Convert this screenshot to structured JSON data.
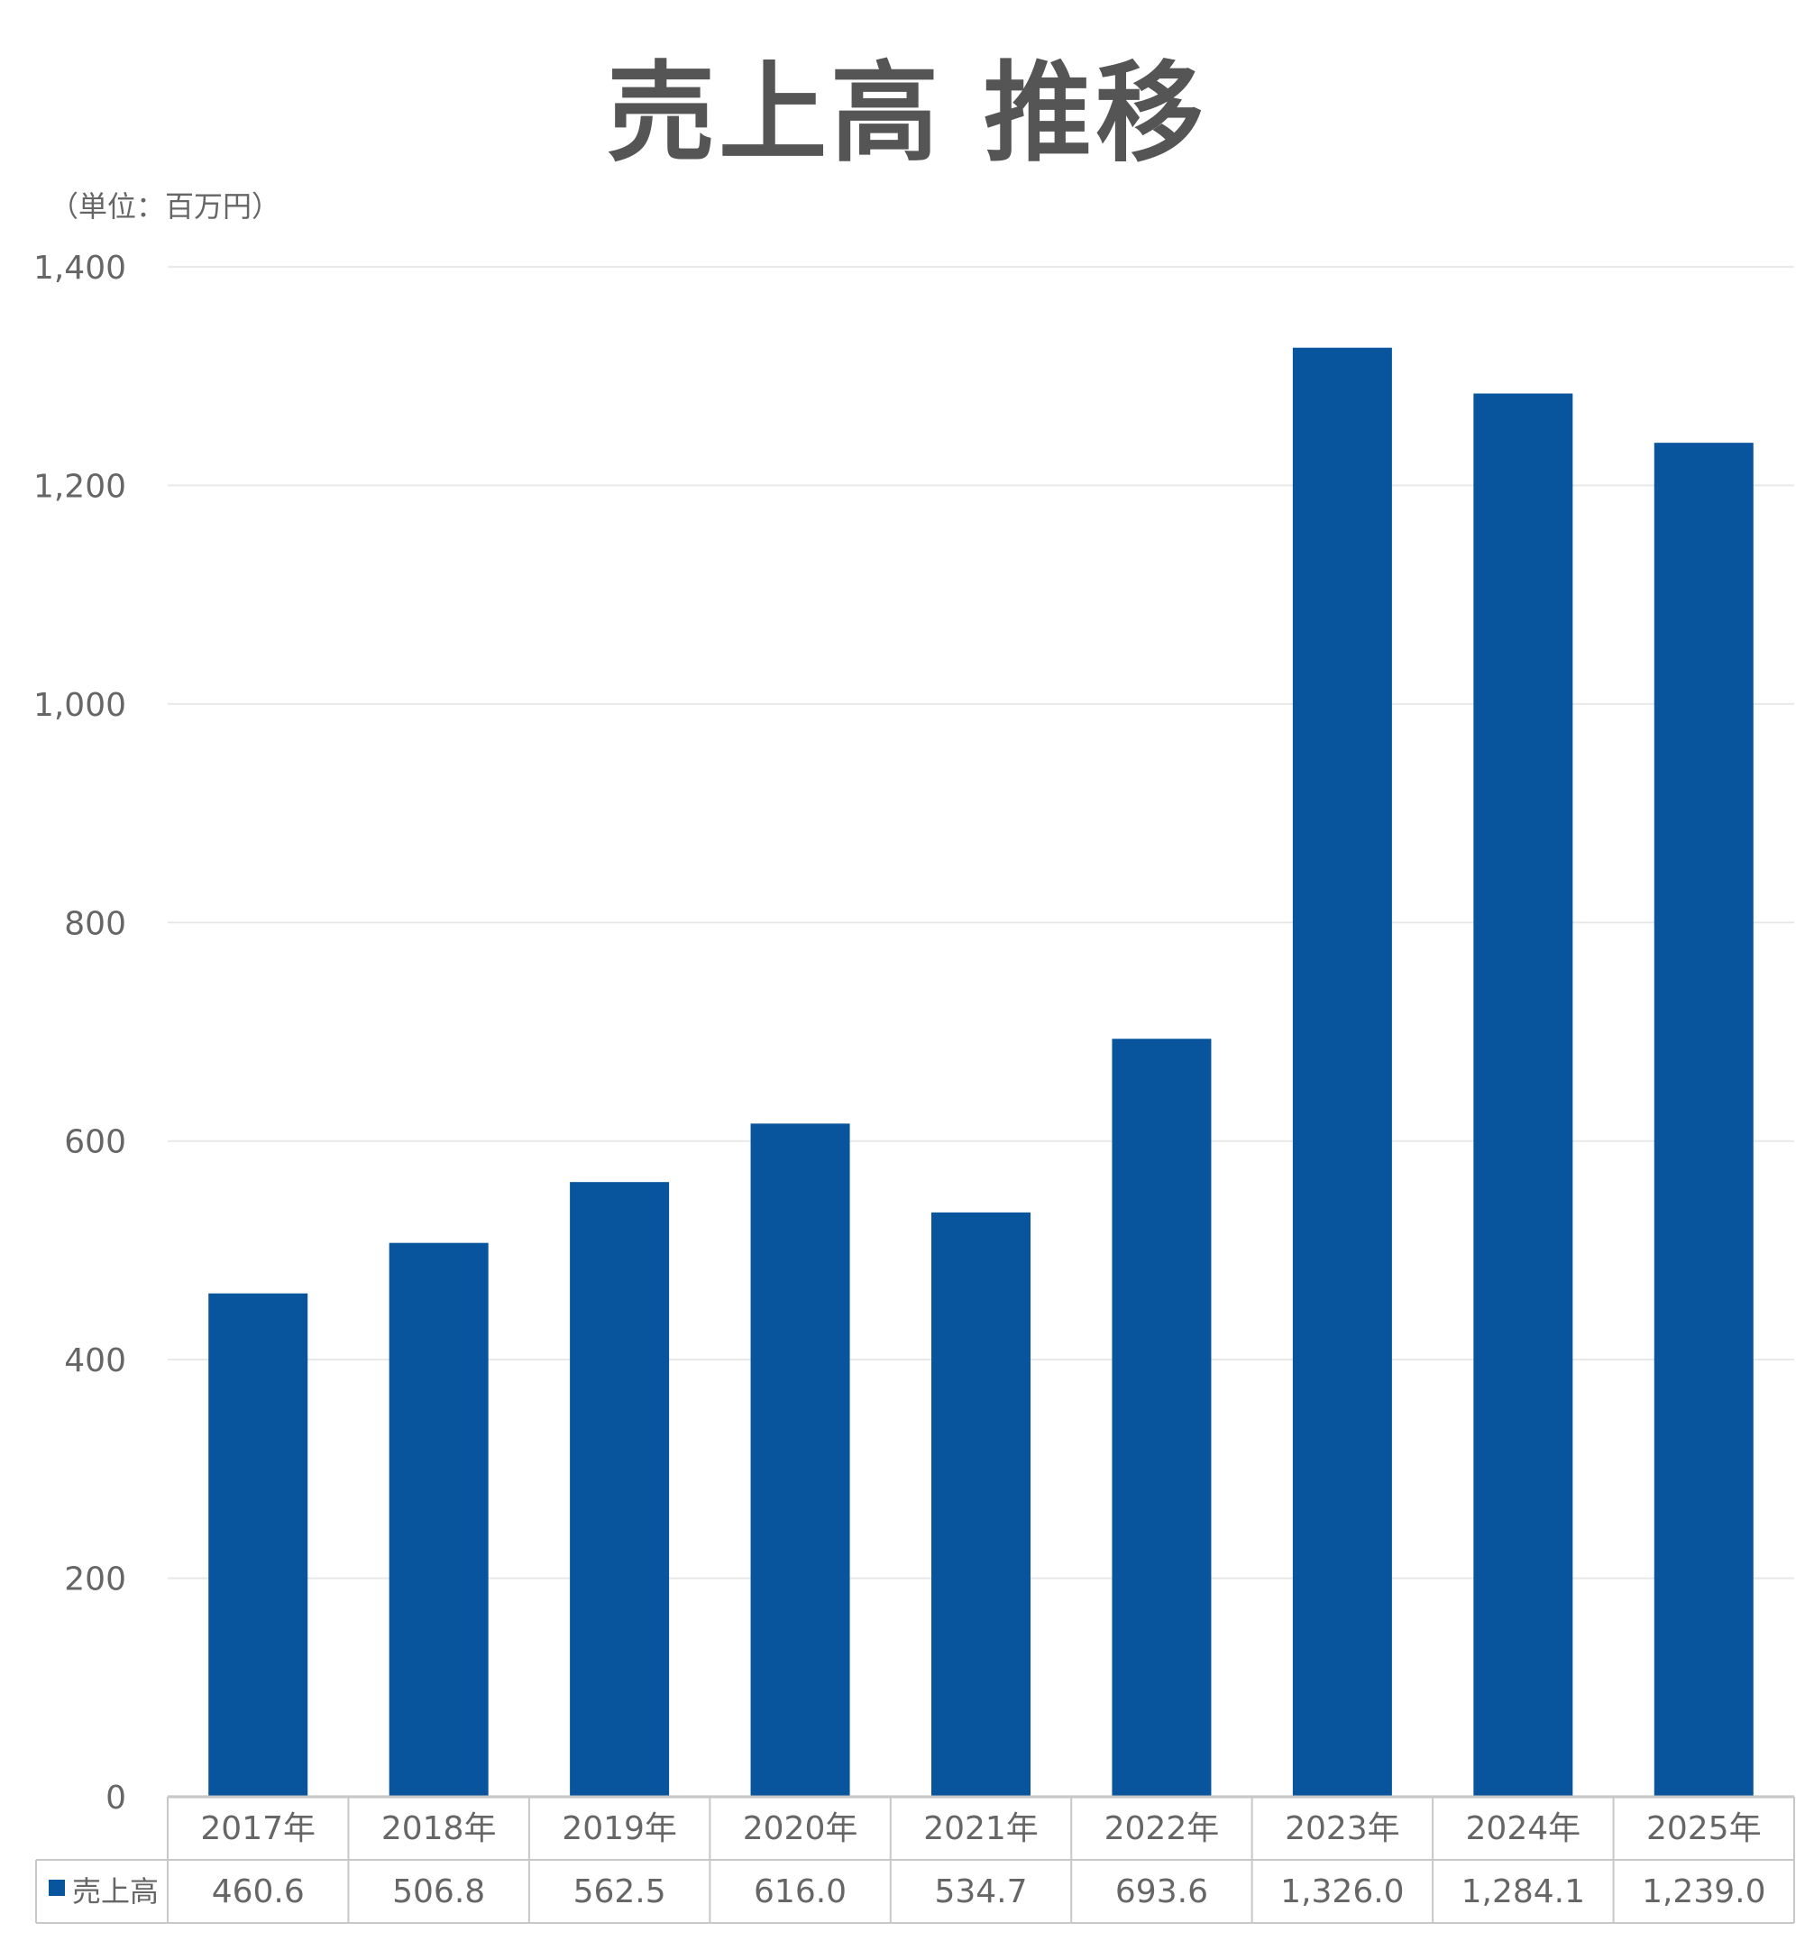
{
  "chart_data": {
    "type": "table",
    "title": "売上高 推移",
    "unit_label": "（単位：百万円）",
    "categories": [
      "2017年",
      "2018年",
      "2019年",
      "2020年",
      "2021年",
      "2022年",
      "2023年",
      "2024年",
      "2025年"
    ],
    "series": [
      {
        "name": "売上高",
        "values": [
          460.6,
          506.8,
          562.5,
          616.0,
          534.7,
          693.6,
          1326.0,
          1284.1,
          1239.0
        ],
        "value_labels": [
          "460.6",
          "506.8",
          "562.5",
          "616.0",
          "534.7",
          "693.6",
          "1,326.0",
          "1,284.1",
          "1,239.0"
        ]
      }
    ],
    "ylim": [
      0,
      1400
    ],
    "y_ticks": [
      0,
      200,
      400,
      600,
      800,
      1000,
      1200,
      1400
    ],
    "y_tick_labels": [
      "0",
      "200",
      "400",
      "600",
      "800",
      "1,000",
      "1,200",
      "1,400"
    ],
    "chart_kind": "bar",
    "grid": true,
    "legend": "data-table-left"
  },
  "colors": {
    "bar": "#08559E",
    "grid": "#E8E8E8",
    "table_border": "#C8C8C8",
    "text": "#666666",
    "title": "#555555"
  }
}
